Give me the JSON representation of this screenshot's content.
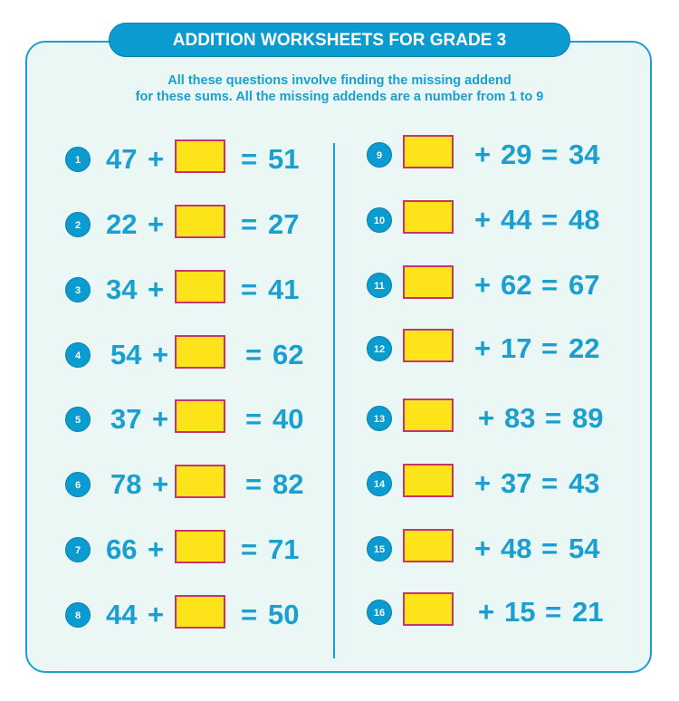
{
  "title": "ADDITION WORKSHEETS FOR GRADE 3",
  "instructions": [
    "All these questions involve finding the missing addend",
    "for these sums. All the missing addends are a number from 1 to 9"
  ],
  "colors": {
    "accent": "#0a9bd0",
    "box_fill": "#fde41a",
    "box_border": "#c8356a",
    "background": "#eaf7f4"
  },
  "questions": [
    {
      "n": "1",
      "addend": "47",
      "sum": "51"
    },
    {
      "n": "2",
      "addend": "22",
      "sum": "27"
    },
    {
      "n": "3",
      "addend": "34",
      "sum": "41"
    },
    {
      "n": "4",
      "addend": "54",
      "sum": "62"
    },
    {
      "n": "5",
      "addend": "37",
      "sum": "40"
    },
    {
      "n": "6",
      "addend": "78",
      "sum": "82"
    },
    {
      "n": "7",
      "addend": "66",
      "sum": "71"
    },
    {
      "n": "8",
      "addend": "44",
      "sum": "50"
    },
    {
      "n": "9",
      "addend": "29",
      "sum": "34"
    },
    {
      "n": "10",
      "addend": "44",
      "sum": "48"
    },
    {
      "n": "11",
      "addend": "62",
      "sum": "67"
    },
    {
      "n": "12",
      "addend": "17",
      "sum": "22"
    },
    {
      "n": "13",
      "addend": "83",
      "sum": "89"
    },
    {
      "n": "14",
      "addend": "37",
      "sum": "43"
    },
    {
      "n": "15",
      "addend": "48",
      "sum": "54"
    },
    {
      "n": "16",
      "addend": "15",
      "sum": "21"
    }
  ]
}
